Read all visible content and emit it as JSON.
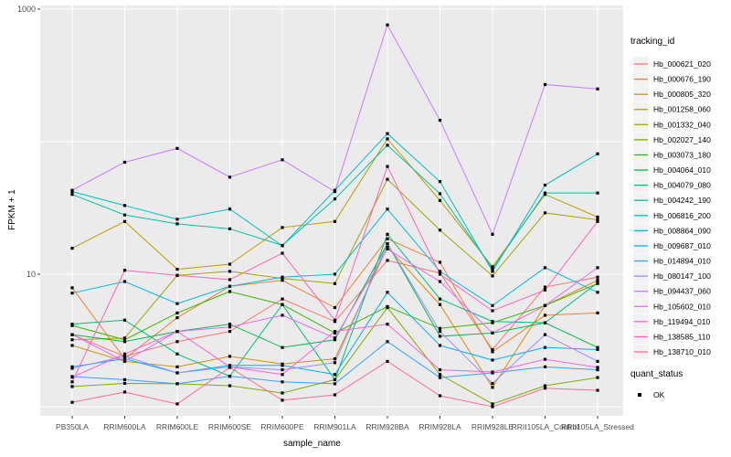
{
  "chart_data": {
    "type": "line",
    "title": "",
    "xlabel": "sample_name",
    "ylabel": "FPKM + 1",
    "y_scale": "log10",
    "ylim": [
      1,
      1000
    ],
    "grid": true,
    "legend_position": "right",
    "y_ticks": [
      {
        "value": 1000,
        "label": "1000"
      },
      {
        "value": 10,
        "label": "10"
      }
    ],
    "y_gridlines": [
      1,
      10,
      100,
      1000
    ],
    "categories": [
      "PB350LA",
      "RRIM600LA",
      "RRIM600LE",
      "RRIM600SE",
      "RRIM600PE",
      "RRIM901LA",
      "RRIM928BA",
      "RRIM928LA",
      "RRIM928LE",
      "RRII105LA_Control",
      "RRII105LA_Stressed"
    ],
    "legend_title": "tracking_id",
    "series": [
      {
        "name": "Hb_000621_020",
        "color": "#F8766D",
        "values": [
          3.5,
          2.4,
          3.1,
          3.7,
          6.5,
          4.4,
          12.7,
          10.2,
          2.7,
          8.0,
          9.5
        ]
      },
      {
        "name": "Hb_000676_190",
        "color": "#EA8331",
        "values": [
          7.9,
          2.3,
          4.7,
          8.1,
          9.0,
          5.6,
          18.5,
          12.3,
          2.6,
          4.9,
          5.1
        ]
      },
      {
        "name": "Hb_000805_320",
        "color": "#D89000",
        "values": [
          2.9,
          2.2,
          2.0,
          2.4,
          2.1,
          2.3,
          16.0,
          5.9,
          1.4,
          5.8,
          9.0
        ]
      },
      {
        "name": "Hb_001258_060",
        "color": "#C09B00",
        "values": [
          15.7,
          25,
          10.9,
          11.9,
          22.5,
          25,
          105,
          36,
          11.4,
          40,
          27
        ]
      },
      {
        "name": "Hb_001332_040",
        "color": "#A3A500",
        "values": [
          3.2,
          3.3,
          9.8,
          10.5,
          9.3,
          8.5,
          52,
          21.5,
          9.7,
          29,
          25.7
        ]
      },
      {
        "name": "Hb_002027_140",
        "color": "#7CAE00",
        "values": [
          1.42,
          1.5,
          1.49,
          1.44,
          1.27,
          1.6,
          5.6,
          1.75,
          1.05,
          1.44,
          1.66
        ]
      },
      {
        "name": "Hb_003073_180",
        "color": "#39B600",
        "values": [
          4.1,
          3.2,
          5.1,
          7.4,
          5.9,
          3.6,
          5.7,
          3.9,
          4.3,
          5.8,
          8.5
        ]
      },
      {
        "name": "Hb_004064_010",
        "color": "#00BB4E",
        "values": [
          3.5,
          3.1,
          3.7,
          4.2,
          2.8,
          3.2,
          17,
          3.4,
          3.6,
          4.3,
          2.8
        ]
      },
      {
        "name": "Hb_004079_080",
        "color": "#00BF7D",
        "values": [
          4.2,
          4.5,
          2.5,
          1.7,
          5.9,
          1.6,
          20,
          6.5,
          4.4,
          4.3,
          8.6
        ]
      },
      {
        "name": "Hb_004242_190",
        "color": "#00C1A3",
        "values": [
          40,
          28,
          24,
          22,
          16.5,
          37,
          94,
          40.5,
          11,
          41,
          41
        ]
      },
      {
        "name": "Hb_006816_200",
        "color": "#00BFC4",
        "values": [
          42,
          33,
          26,
          31,
          16.4,
          43,
          115,
          50,
          10.5,
          47,
          81
        ]
      },
      {
        "name": "Hb_008864_090",
        "color": "#00BAE0",
        "values": [
          7.2,
          8.8,
          6.0,
          8.1,
          9.5,
          10,
          31,
          10.5,
          5.8,
          11.2,
          7.3
        ]
      },
      {
        "name": "Hb_009687_010",
        "color": "#00B0F6",
        "values": [
          2.0,
          2.3,
          1.8,
          2.05,
          2.05,
          1.75,
          7.3,
          2.9,
          2.25,
          2.8,
          2.7
        ]
      },
      {
        "name": "Hb_014894_010",
        "color": "#35A2FF",
        "values": [
          1.69,
          1.6,
          1.49,
          1.7,
          1.54,
          1.49,
          3.1,
          1.66,
          1.8,
          2.0,
          1.9
        ]
      },
      {
        "name": "Hb_080147_100",
        "color": "#9590FF",
        "values": [
          1.95,
          2.4,
          1.8,
          2.0,
          1.9,
          2.15,
          17,
          3.7,
          1.5,
          3.5,
          2.2
        ]
      },
      {
        "name": "Hb_094437_060",
        "color": "#C77CFF",
        "values": [
          43,
          70,
          89,
          54,
          73,
          42,
          760,
          145,
          20,
          270,
          250
        ]
      },
      {
        "name": "Hb_105602_010",
        "color": "#E76BF3",
        "values": [
          3.5,
          2.2,
          3.7,
          4.0,
          4.9,
          3.3,
          15.5,
          8.8,
          3.6,
          5.8,
          11.2
        ]
      },
      {
        "name": "Hb_119494_010",
        "color": "#FA62DB",
        "values": [
          1.67,
          2.5,
          3.7,
          2.0,
          1.75,
          3.7,
          4.2,
          1.9,
          1.83,
          2.28,
          1.98
        ]
      },
      {
        "name": "Hb_138585_110",
        "color": "#FF62BC",
        "values": [
          1.54,
          10.7,
          9.8,
          9.1,
          14.4,
          4.5,
          65,
          10.0,
          5.3,
          7.6,
          25
        ]
      },
      {
        "name": "Hb_138710_010",
        "color": "#FF6A98",
        "values": [
          1.08,
          1.29,
          1.05,
          1.98,
          1.12,
          1.23,
          2.2,
          1.21,
          1.0,
          1.38,
          1.33
        ]
      }
    ],
    "quant_legend": {
      "title": "quant_status",
      "items": [
        {
          "label": "OK",
          "marker": "black-square"
        }
      ]
    }
  },
  "colors": {
    "panel": "#EBEBEB",
    "grid": "#FFFFFF",
    "tick_text": "#4D4D4D",
    "axis_text": "#000000",
    "point": "#000000",
    "legend_key_bg": "#F2F2F2"
  }
}
